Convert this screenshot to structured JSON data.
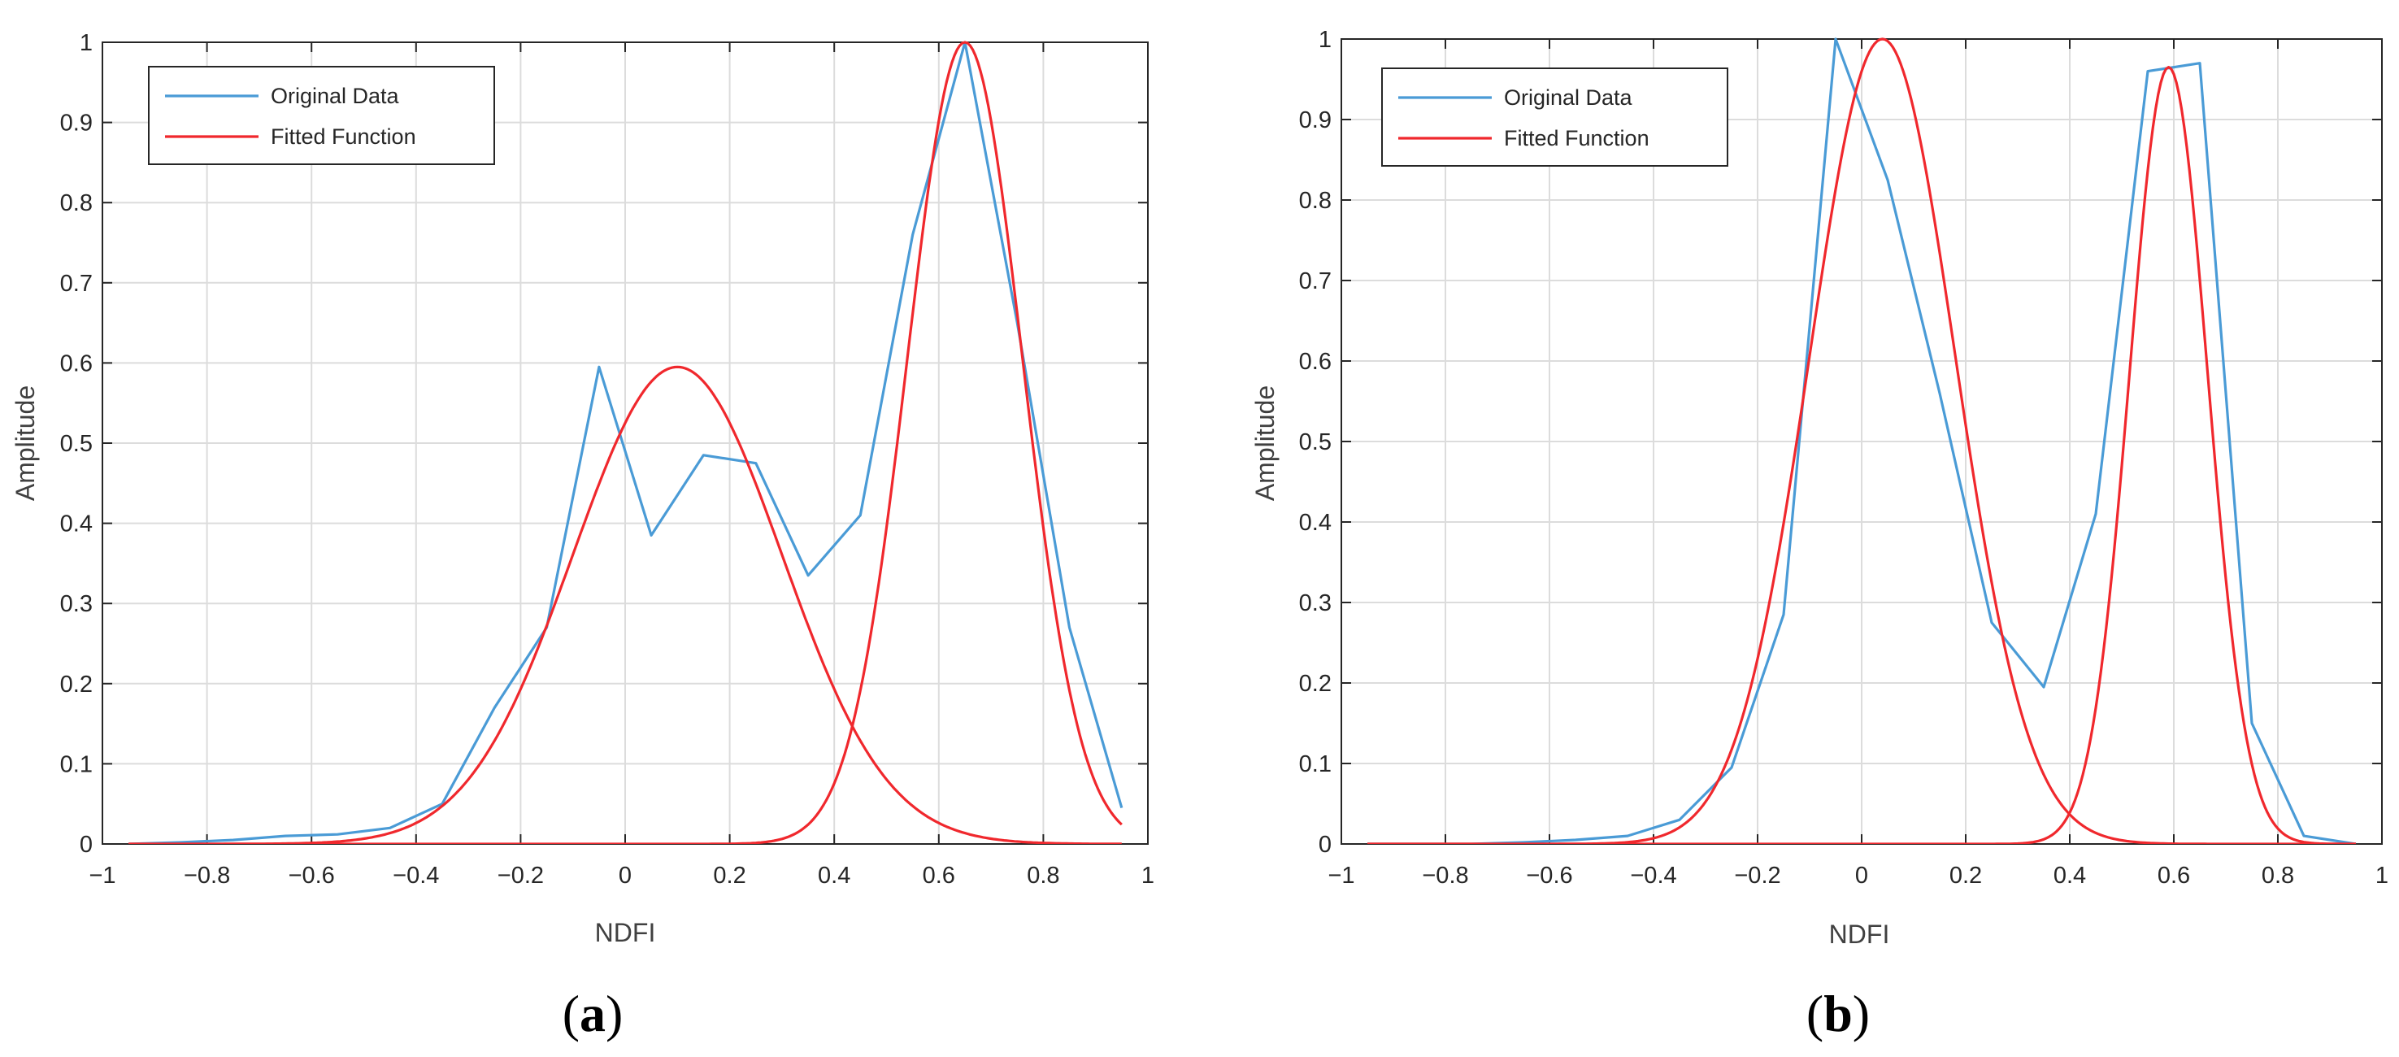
{
  "colors": {
    "original": "#4a9bd6",
    "fitted": "#f0282d",
    "grid": "#dcdcdc",
    "axis": "#262626"
  },
  "chart_data": [
    {
      "type": "line",
      "panel_label": "(a)",
      "xlabel": "NDFI",
      "ylabel": "Amplitude",
      "xlim": [
        -1,
        1
      ],
      "ylim": [
        0,
        1
      ],
      "xticks": [
        -1,
        -0.8,
        -0.6,
        -0.4,
        -0.2,
        0,
        0.2,
        0.4,
        0.6,
        0.8,
        1
      ],
      "xtick_labels": [
        "−1",
        "−0.8",
        "−0.6",
        "−0.4",
        "−0.2",
        "0",
        "0.2",
        "0.4",
        "0.6",
        "0.8",
        "1"
      ],
      "yticks": [
        0,
        0.1,
        0.2,
        0.3,
        0.4,
        0.5,
        0.6,
        0.7,
        0.8,
        0.9,
        1
      ],
      "ytick_labels": [
        "0",
        "0.1",
        "0.2",
        "0.3",
        "0.4",
        "0.5",
        "0.6",
        "0.7",
        "0.8",
        "0.9",
        "1"
      ],
      "grid": true,
      "legend_position": "top-left",
      "legend": [
        "Original Data",
        "Fitted Function"
      ],
      "series": [
        {
          "name": "Original Data",
          "x": [
            -0.95,
            -0.85,
            -0.75,
            -0.65,
            -0.55,
            -0.45,
            -0.35,
            -0.25,
            -0.15,
            -0.05,
            0.05,
            0.15,
            0.25,
            0.35,
            0.45,
            0.55,
            0.65,
            0.75,
            0.85,
            0.95
          ],
          "y": [
            0.0,
            0.002,
            0.005,
            0.01,
            0.012,
            0.02,
            0.05,
            0.17,
            0.27,
            0.595,
            0.385,
            0.485,
            0.475,
            0.335,
            0.41,
            0.76,
            1.0,
            0.65,
            0.27,
            0.045
          ]
        },
        {
          "name": "Fitted Function",
          "components": [
            {
              "amplitude": 0.595,
              "mean": 0.1,
              "sigma": 0.2
            },
            {
              "amplitude": 1.0,
              "mean": 0.65,
              "sigma": 0.11
            }
          ]
        }
      ]
    },
    {
      "type": "line",
      "panel_label": "(b)",
      "xlabel": "NDFI",
      "ylabel": "Amplitude",
      "xlim": [
        -1,
        1
      ],
      "ylim": [
        0,
        1
      ],
      "xticks": [
        -1,
        -0.8,
        -0.6,
        -0.4,
        -0.2,
        0,
        0.2,
        0.4,
        0.6,
        0.8,
        1
      ],
      "xtick_labels": [
        "−1",
        "−0.8",
        "−0.6",
        "−0.4",
        "−0.2",
        "0",
        "0.2",
        "0.4",
        "0.6",
        "0.8",
        "1"
      ],
      "yticks": [
        0,
        0.1,
        0.2,
        0.3,
        0.4,
        0.5,
        0.6,
        0.7,
        0.8,
        0.9,
        1
      ],
      "ytick_labels": [
        "0",
        "0.1",
        "0.2",
        "0.3",
        "0.4",
        "0.5",
        "0.6",
        "0.7",
        "0.8",
        "0.9",
        "1"
      ],
      "grid": true,
      "legend_position": "top-left",
      "legend": [
        "Original Data",
        "Fitted Function"
      ],
      "series": [
        {
          "name": "Original Data",
          "x": [
            -0.95,
            -0.85,
            -0.75,
            -0.65,
            -0.55,
            -0.45,
            -0.35,
            -0.25,
            -0.15,
            -0.05,
            0.05,
            0.15,
            0.25,
            0.35,
            0.45,
            0.55,
            0.65,
            0.75,
            0.85,
            0.95
          ],
          "y": [
            0.0,
            0.0,
            0.0,
            0.002,
            0.005,
            0.01,
            0.03,
            0.095,
            0.285,
            1.0,
            0.825,
            0.56,
            0.275,
            0.195,
            0.41,
            0.96,
            0.97,
            0.15,
            0.01,
            0.0
          ]
        },
        {
          "name": "Fitted Function",
          "components": [
            {
              "amplitude": 1.0,
              "mean": 0.04,
              "sigma": 0.14
            },
            {
              "amplitude": 0.965,
              "mean": 0.59,
              "sigma": 0.075
            }
          ]
        }
      ]
    }
  ]
}
